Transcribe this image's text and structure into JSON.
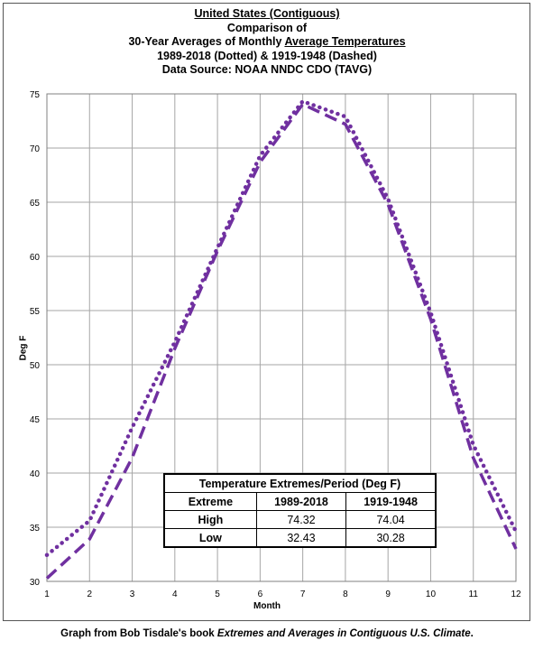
{
  "titles": {
    "line1": "United States (Contiguous)",
    "line2": "Comparison of",
    "line3_a": "30-Year Averages of Monthly ",
    "line3_b": "Average Temperatures",
    "line4": "1989-2018 (Dotted) & 1919-1948 (Dashed)",
    "line5": "Data Source: NOAA NNDC CDO (TAVG)"
  },
  "credit": {
    "prefix": "Graph from Bob Tisdale's book ",
    "book": "Extremes and Averages in Contiguous U.S. Climate",
    "suffix": "."
  },
  "chart_data": {
    "type": "line",
    "xlabel": "Month",
    "ylabel": "Deg F",
    "x": [
      1,
      2,
      3,
      4,
      5,
      6,
      7,
      8,
      9,
      10,
      11,
      12
    ],
    "xlim": [
      1,
      12
    ],
    "ylim": [
      30,
      75
    ],
    "yticks": [
      30,
      35,
      40,
      45,
      50,
      55,
      60,
      65,
      70,
      75
    ],
    "xticks": [
      1,
      2,
      3,
      4,
      5,
      6,
      7,
      8,
      9,
      10,
      11,
      12
    ],
    "grid": true,
    "series": [
      {
        "style": "dotted",
        "color": "#7030A0",
        "values": [
          32.43,
          35.6,
          44.2,
          52.1,
          60.8,
          69.3,
          74.32,
          72.9,
          65.3,
          54.8,
          42.6,
          34.6
        ]
      },
      {
        "style": "dashed",
        "color": "#7030A0",
        "values": [
          30.28,
          33.9,
          41.4,
          51.5,
          60.5,
          68.7,
          74.04,
          72.2,
          64.8,
          54.2,
          41.4,
          33.0
        ]
      }
    ]
  },
  "extremes_table": {
    "title": "Temperature Extremes/Period (Deg F)",
    "headers": [
      "Extreme",
      "1989-2018",
      "1919-1948"
    ],
    "rows": [
      {
        "label": "High",
        "v1": "74.32",
        "v2": "74.04"
      },
      {
        "label": "Low",
        "v1": "32.43",
        "v2": "30.28"
      }
    ]
  }
}
